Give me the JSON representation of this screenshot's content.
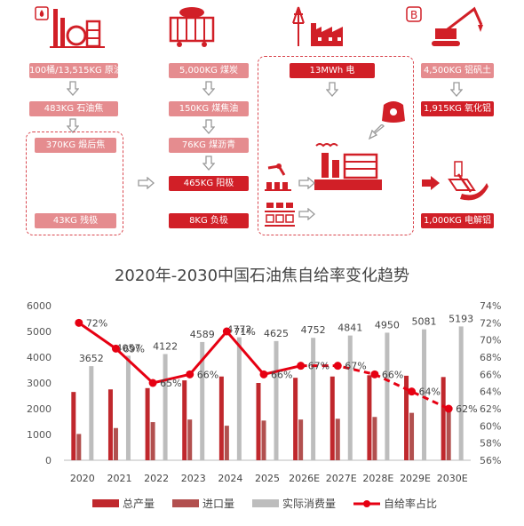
{
  "process": {
    "col1": {
      "b1": "100桶/13,515KG 原油",
      "b2": "483KG 石油焦",
      "b3": "370KG 煅后焦",
      "b4": "43KG 残极"
    },
    "col2": {
      "b1": "5,000KG 煤炭",
      "b2": "150KG 煤焦油",
      "b3": "76KG 煤沥青",
      "b4": "465KG 阳极",
      "b5": "8KG 负极"
    },
    "col3": {
      "b1": "13MWh 电"
    },
    "col4": {
      "b1": "4,500KG 铝矾土",
      "b2": "1,915KG 氧化铝",
      "b3": "1,000KG 电解铝"
    },
    "icons": [
      "refinery-icon",
      "coal-wagon-icon",
      "power-plant-icon",
      "bauxite-excavator-icon",
      "alumina-sack-icon",
      "robot-arm-icon",
      "electrolyzer-icon",
      "anode-blocks-icon",
      "aluminum-ingot-icon"
    ],
    "colors": {
      "pink": "#e58c8f",
      "red": "#d11f27",
      "dash": "#d9474f"
    }
  },
  "chart_data": {
    "type": "bar",
    "title": "2020年-2030中国石油焦自给率变化趋势",
    "categories": [
      "2020",
      "2021",
      "2022",
      "2023",
      "2024",
      "2025",
      "2026E",
      "2027E",
      "2028E",
      "2029E",
      "2030E"
    ],
    "series": [
      {
        "name": "总产量",
        "type": "bar",
        "axis": "left",
        "color": "#c0282d",
        "values": [
          2650,
          2750,
          2800,
          3100,
          3250,
          3000,
          3200,
          3250,
          3300,
          3280,
          3230
        ]
      },
      {
        "name": "进口量",
        "type": "bar",
        "axis": "left",
        "color": "#b2504f",
        "values": [
          1020,
          1250,
          1480,
          1580,
          1340,
          1540,
          1580,
          1610,
          1680,
          1840,
          1980
        ]
      },
      {
        "name": "实际消费量",
        "type": "bar",
        "axis": "left",
        "color": "#bdbdbd",
        "values": [
          3652,
          4057,
          4122,
          4589,
          4772,
          4625,
          4752,
          4841,
          4950,
          5081,
          5193
        ],
        "labels": [
          "3652",
          "4057",
          "4122",
          "4589",
          "4772",
          "4625",
          "4752",
          "4841",
          "4950",
          "5081",
          "5193"
        ]
      },
      {
        "name": "自给率占比",
        "type": "line",
        "axis": "right",
        "color": "#e60012",
        "values": [
          72,
          69,
          65,
          66,
          71,
          66,
          67,
          67,
          66,
          64,
          62
        ],
        "labels": [
          "72%",
          "69%",
          "65%",
          "66%",
          "71%",
          "66%",
          "67%",
          "67%",
          "66%",
          "64%",
          "62%"
        ],
        "dashed_from_index": 6
      }
    ],
    "yaxis_left": {
      "ticks": [
        "0",
        "1000",
        "2000",
        "3000",
        "4000",
        "5000",
        "6000"
      ],
      "ylim": [
        0,
        6000
      ]
    },
    "yaxis_right": {
      "ticks": [
        "56%",
        "58%",
        "60%",
        "62%",
        "64%",
        "66%",
        "68%",
        "70%",
        "72%",
        "74%"
      ],
      "ylim": [
        56,
        74
      ]
    },
    "grid": false,
    "legend": "bottom"
  }
}
